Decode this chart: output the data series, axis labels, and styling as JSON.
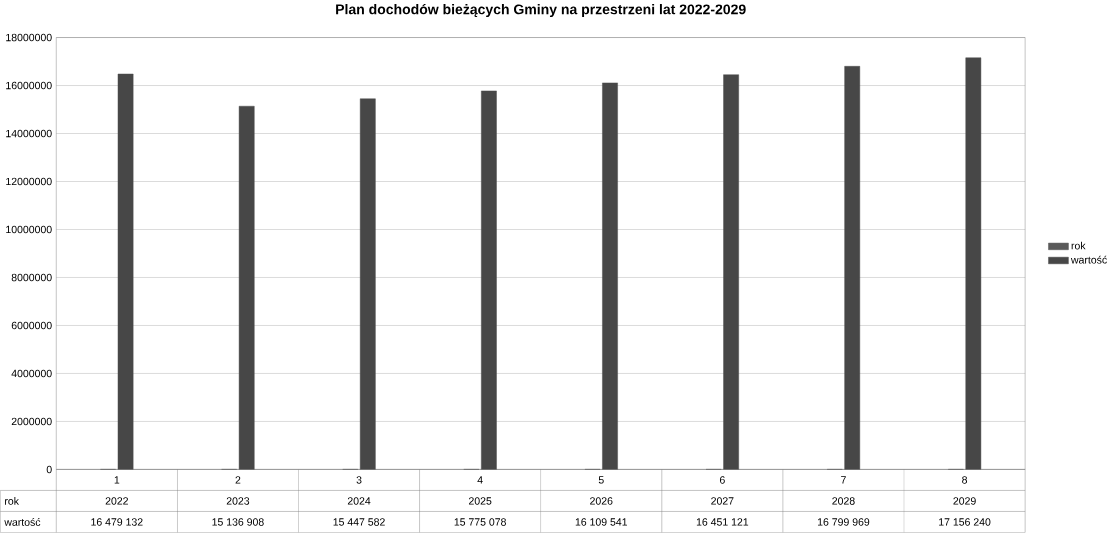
{
  "chart_data": {
    "type": "bar",
    "title": "Plan dochodów bieżących Gminy na przestrzeni lat 2022-2029",
    "categories": [
      "1",
      "2",
      "3",
      "4",
      "5",
      "6",
      "7",
      "8"
    ],
    "series": [
      {
        "name": "rok",
        "color": "#5a5a5a",
        "values": [
          2022,
          2023,
          2024,
          2025,
          2026,
          2027,
          2028,
          2029
        ],
        "value_labels": [
          "2022",
          "2023",
          "2024",
          "2025",
          "2026",
          "2027",
          "2028",
          "2029"
        ]
      },
      {
        "name": "wartość",
        "color": "#474747",
        "values": [
          16479132,
          15136908,
          15447582,
          15775078,
          16109541,
          16451121,
          16799969,
          17156240
        ],
        "value_labels": [
          "16 479 132",
          "15 136 908",
          "15 447 582",
          "15 775 078",
          "16 109 541",
          "16 451 121",
          "16 799 969",
          "17 156 240"
        ]
      }
    ],
    "ylim": [
      0,
      18000000
    ],
    "yticks": [
      0,
      2000000,
      4000000,
      6000000,
      8000000,
      10000000,
      12000000,
      14000000,
      16000000,
      18000000
    ],
    "grid": "y",
    "legend": "right"
  }
}
